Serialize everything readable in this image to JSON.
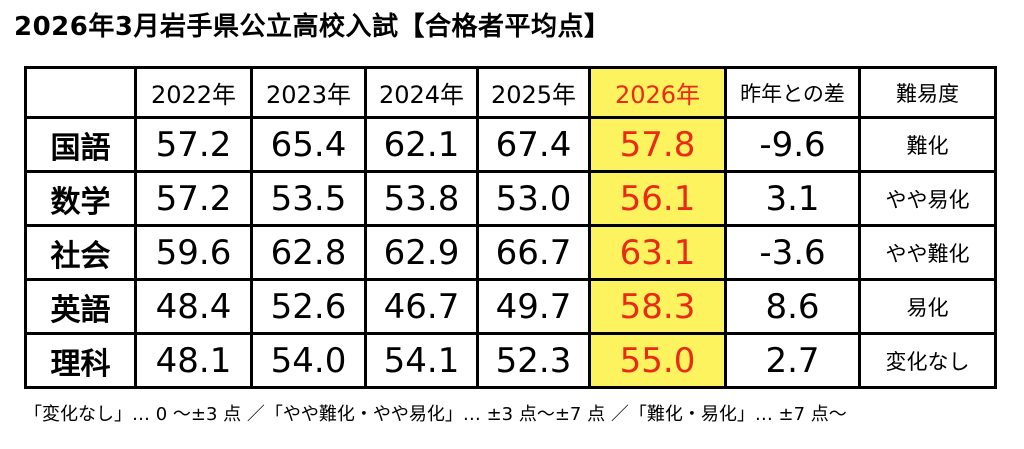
{
  "title": "2026年3月岩手県公立高校入試【合格者平均点】",
  "header": {
    "corner": "",
    "years": [
      "2022年",
      "2023年",
      "2024年",
      "2025年",
      "2026年"
    ],
    "diff": "昨年との差",
    "difficulty": "難易度"
  },
  "rows": [
    {
      "subject": "国語",
      "scores": [
        "57.2",
        "65.4",
        "62.1",
        "67.4",
        "57.8"
      ],
      "diff": "-9.6",
      "difficulty": "難化"
    },
    {
      "subject": "数学",
      "scores": [
        "57.2",
        "53.5",
        "53.8",
        "53.0",
        "56.1"
      ],
      "diff": "3.1",
      "difficulty": "やや易化"
    },
    {
      "subject": "社会",
      "scores": [
        "59.6",
        "62.8",
        "62.9",
        "66.7",
        "63.1"
      ],
      "diff": "-3.6",
      "difficulty": "やや難化"
    },
    {
      "subject": "英語",
      "scores": [
        "48.4",
        "52.6",
        "46.7",
        "49.7",
        "58.3"
      ],
      "diff": "8.6",
      "difficulty": "易化"
    },
    {
      "subject": "理科",
      "scores": [
        "48.1",
        "54.0",
        "54.1",
        "52.3",
        "55.0"
      ],
      "diff": "2.7",
      "difficulty": "変化なし"
    }
  ],
  "note": "「変化なし」… 0 〜±3 点 ／「やや難化・やや易化」… ±3 点〜±7 点 ／「難化・易化」… ±7 点〜",
  "colors": {
    "highlight_bg": "#fdf35f",
    "highlight_text": "#ea2a14"
  }
}
